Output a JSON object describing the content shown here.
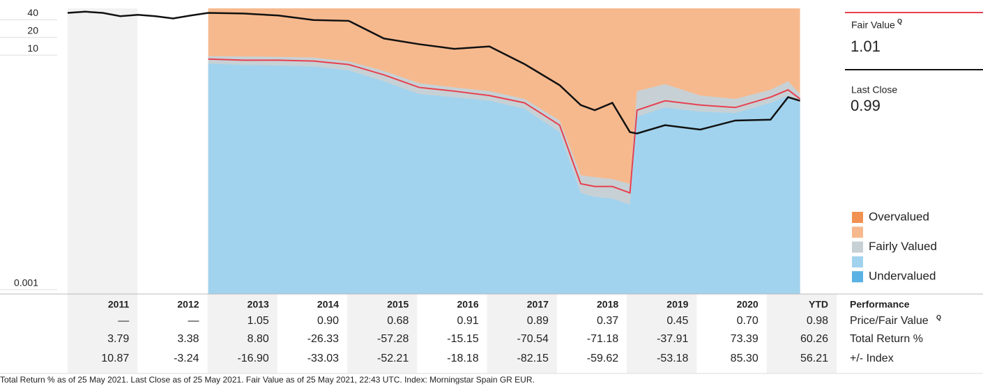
{
  "chart_data": {
    "type": "line",
    "log_scale": true,
    "x": [
      2011.0,
      2011.25,
      2011.5,
      2011.75,
      2012.0,
      2012.25,
      2012.5,
      2012.75,
      2013.0,
      2013.5,
      2014.0,
      2014.5,
      2015.0,
      2015.5,
      2016.0,
      2016.5,
      2017.0,
      2017.5,
      2018.0,
      2018.3,
      2018.5,
      2018.75,
      2019.0,
      2019.1,
      2019.5,
      2020.0,
      2020.5,
      2021.0,
      2021.25,
      2021.42
    ],
    "xlim": [
      2011,
      2021.94
    ],
    "ylim": [
      0.00066,
      49
    ],
    "yticks": [
      40,
      20,
      10,
      0.001
    ],
    "series": [
      {
        "name": "Undervalued",
        "color": "#a2d3ee",
        "values": [
          null,
          null,
          null,
          null,
          null,
          null,
          null,
          null,
          5.6,
          5.3,
          5.2,
          5.0,
          4.3,
          2.8,
          1.7,
          1.5,
          1.3,
          0.95,
          0.38,
          0.035,
          0.03,
          0.028,
          0.022,
          0.7,
          1.0,
          0.85,
          0.8,
          1.2,
          1.6,
          1.2
        ]
      },
      {
        "name": "Fairly Valued",
        "color": "#c7d1d5",
        "values": [
          null,
          null,
          null,
          null,
          null,
          null,
          null,
          null,
          7.5,
          7.4,
          7.3,
          7.1,
          6.1,
          4.2,
          2.6,
          2.2,
          1.9,
          1.4,
          0.6,
          0.07,
          0.065,
          0.06,
          0.05,
          1.9,
          2.5,
          1.6,
          1.4,
          2.0,
          2.8,
          1.7
        ]
      },
      {
        "name": "Fair Value",
        "color": "#e8404f",
        "values": [
          null,
          null,
          null,
          null,
          null,
          null,
          null,
          null,
          6.7,
          6.4,
          6.4,
          6.2,
          5.4,
          3.6,
          2.2,
          1.9,
          1.6,
          1.2,
          0.5,
          0.05,
          0.045,
          0.045,
          0.035,
          0.9,
          1.3,
          1.1,
          1.0,
          1.5,
          2.0,
          1.4
        ]
      },
      {
        "name": "Last Close",
        "color": "#111111",
        "values": [
          41,
          43,
          41,
          36,
          38,
          36,
          33,
          37,
          41,
          40,
          37,
          31,
          30,
          15,
          12,
          10,
          11,
          5.5,
          2.4,
          1.1,
          0.9,
          1.2,
          0.38,
          0.36,
          0.5,
          0.42,
          0.6,
          0.62,
          1.5,
          1.3
        ]
      }
    ],
    "overvalued_color": "#f6b98e",
    "legend": [
      {
        "label": "Overvalued",
        "color": "#f19152"
      },
      {
        "label": null,
        "color": "#f6b98e"
      },
      {
        "label": "Fairly Valued",
        "color": "#c7d1d5"
      },
      {
        "label": null,
        "color": "#a2d3ee"
      },
      {
        "label": "Undervalued",
        "color": "#5ab1e3"
      }
    ],
    "fair_value_label": "Fair Value",
    "fair_value": "1.01",
    "last_close_label": "Last Close",
    "last_close": "0.99",
    "quant_mark": "Q"
  },
  "performance": {
    "title": "Performance",
    "columns": [
      "2011",
      "2012",
      "2013",
      "2014",
      "2015",
      "2016",
      "2017",
      "2018",
      "2019",
      "2020",
      "YTD"
    ],
    "rows": [
      {
        "label": "Price/Fair Value",
        "values": [
          "—",
          "—",
          "1.05",
          "0.90",
          "0.68",
          "0.91",
          "0.89",
          "0.37",
          "0.45",
          "0.70",
          "0.98"
        ]
      },
      {
        "label": "Total Return %",
        "values": [
          "3.79",
          "3.38",
          "8.80",
          "-26.33",
          "-57.28",
          "-15.15",
          "-70.54",
          "-71.18",
          "-37.91",
          "73.39",
          "60.26"
        ]
      },
      {
        "label": "+/- Index",
        "values": [
          "10.87",
          "-3.24",
          "-16.90",
          "-33.03",
          "-52.21",
          "-18.18",
          "-82.15",
          "-59.62",
          "-53.18",
          "85.30",
          "56.21"
        ]
      }
    ]
  },
  "footer": "Total Return % as of 25 May 2021. Last Close as of 25 May 2021. Fair Value as of 25 May 2021, 22:43 UTC. Index: Morningstar Spain GR EUR."
}
